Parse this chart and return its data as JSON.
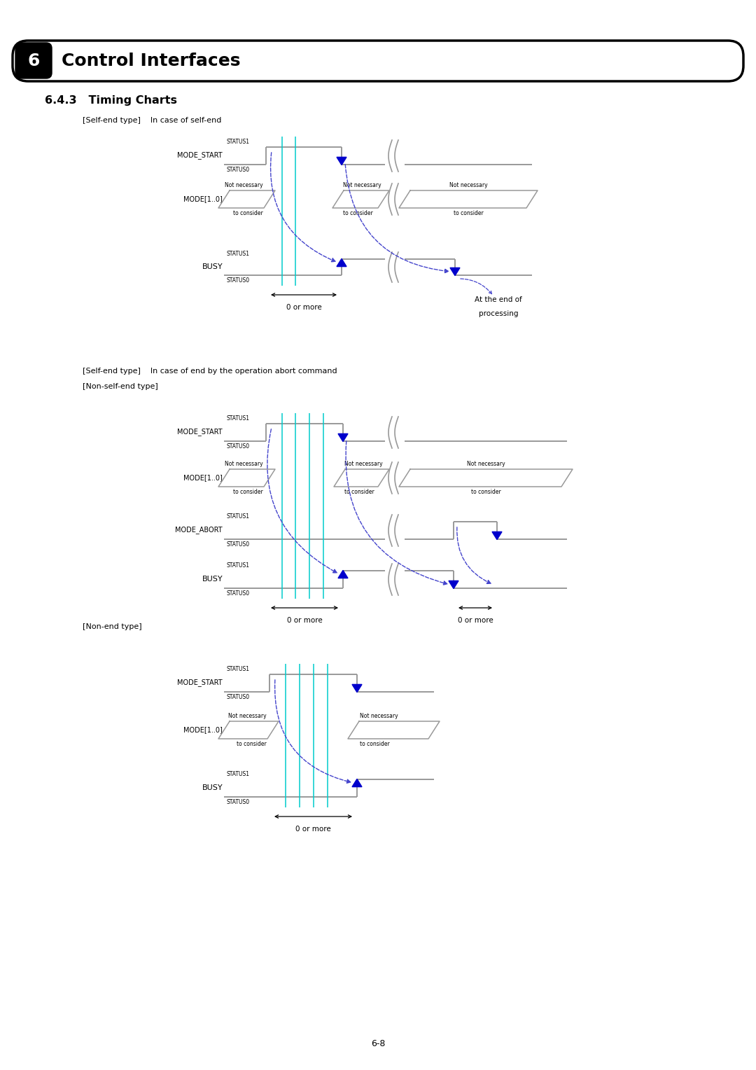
{
  "bg_color": "#ffffff",
  "signal_color": "#999999",
  "cyan_color": "#00cccc",
  "blue_color": "#0000cc",
  "dashed_color": "#4444cc",
  "black": "#000000",
  "page_number": "6-8",
  "header_text": "Control Interfaces",
  "header_num": "6",
  "subtitle": "6.4.3   Timing Charts",
  "label1": "[Self-end type]    In case of self-end",
  "label2a": "[Self-end type]    In case of end by the operation abort command",
  "label2b": "[Non-self-end type]",
  "label3": "[Non-end type]"
}
